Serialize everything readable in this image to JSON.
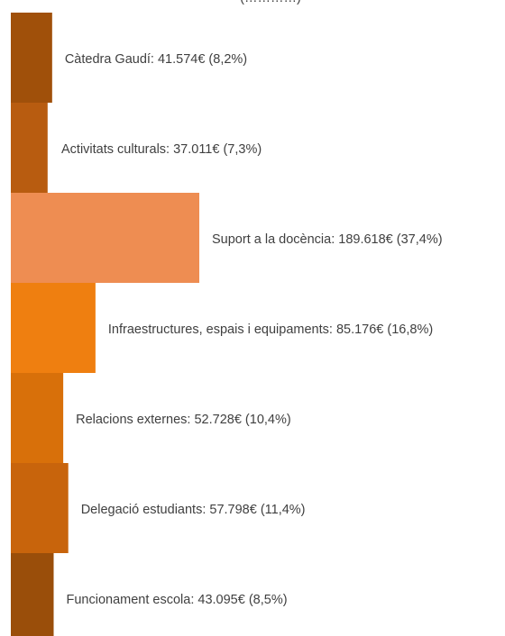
{
  "chart_data": {
    "type": "bar",
    "orientation": "horizontal",
    "title": "(…………)",
    "categories": [
      "Càtedra Gaudí",
      "Activitats culturals",
      "Suport a la docència",
      "Infraestructures, espais i equipaments",
      "Relacions externes",
      "Delegació estudiants",
      "Funcionament escola"
    ],
    "values": [
      41574,
      37011,
      189618,
      85176,
      52728,
      57798,
      43095
    ],
    "percentages": [
      8.2,
      7.3,
      37.4,
      16.8,
      10.4,
      11.4,
      8.5
    ],
    "labels": [
      "Càtedra Gaudí: 41.574€ (8,2%)",
      "Activitats culturals: 37.011€ (7,3%)",
      "Suport a la docència: 189.618€ (37,4%)",
      "Infraestructures, espais i equipaments: 85.176€ (16,8%)",
      "Relacions externes: 52.728€ (10,4%)",
      "Delegació estudiants: 57.798€ (11,4%)",
      "Funcionament escola: 43.095€ (8,5%)"
    ],
    "colors": [
      "#A0500A",
      "#B85C10",
      "#EE8D52",
      "#EF7F10",
      "#D8700A",
      "#C8640C",
      "#9A4E0A"
    ],
    "xlim": [
      0,
      189618
    ],
    "grid": false,
    "legend": "none"
  }
}
